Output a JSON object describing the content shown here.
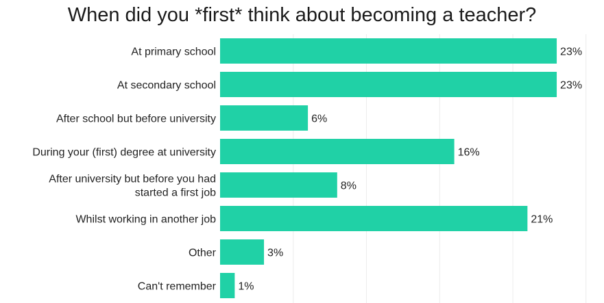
{
  "chart_data": {
    "type": "bar",
    "orientation": "horizontal",
    "title": "When did you *first* think about becoming a teacher?",
    "categories": [
      [
        "At primary school"
      ],
      [
        "At secondary school"
      ],
      [
        "After school but before university"
      ],
      [
        "During your (first) degree at university"
      ],
      [
        "After university but before you had",
        "started a first job"
      ],
      [
        "Whilst working in another job"
      ],
      [
        "Other"
      ],
      [
        "Can't remember"
      ]
    ],
    "values": [
      23,
      23,
      6,
      16,
      8,
      21,
      3,
      1
    ],
    "value_labels": [
      "23%",
      "23%",
      "6%",
      "16%",
      "8%",
      "21%",
      "3%",
      "1%"
    ],
    "xlim": [
      0,
      25
    ],
    "grid_step": 5,
    "grid": true,
    "bar_color": "#20d1a6",
    "grid_color": "#ececec"
  }
}
